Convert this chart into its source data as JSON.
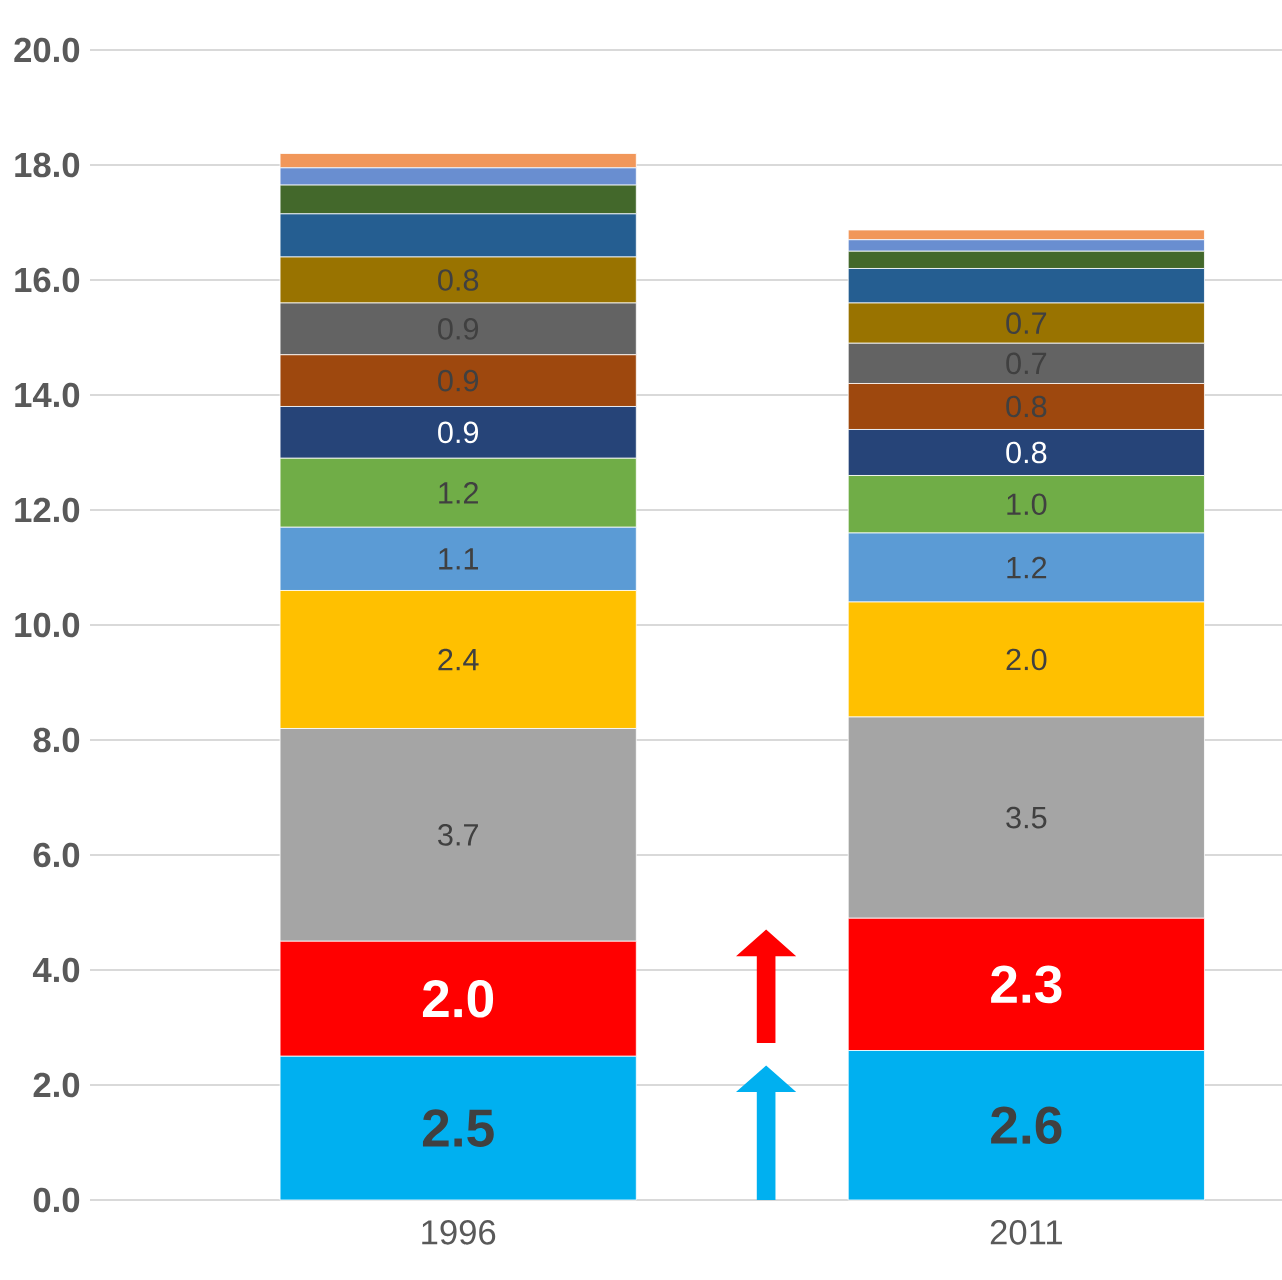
{
  "chart_data": {
    "type": "bar",
    "stacked": true,
    "categories": [
      "1996",
      "2011"
    ],
    "series": [
      {
        "color": "#00b0f0",
        "values": [
          2.5,
          2.6
        ],
        "value_labels": [
          "2.5",
          "2.6"
        ]
      },
      {
        "color": "#ff0000",
        "values": [
          2.0,
          2.3
        ],
        "value_labels": [
          "2.0",
          "2.3"
        ]
      },
      {
        "color": "#a5a5a5",
        "values": [
          3.7,
          3.5
        ],
        "value_labels": [
          "3.7",
          "3.5"
        ]
      },
      {
        "color": "#ffc000",
        "values": [
          2.4,
          2.0
        ],
        "value_labels": [
          "2.4",
          "2.0"
        ]
      },
      {
        "color": "#5b9bd5",
        "values": [
          1.1,
          1.2
        ],
        "value_labels": [
          "1.1",
          "1.2"
        ]
      },
      {
        "color": "#70ad47",
        "values": [
          1.2,
          1.0
        ],
        "value_labels": [
          "1.2",
          "1.0"
        ]
      },
      {
        "color": "#264478",
        "values": [
          0.9,
          0.8
        ],
        "value_labels": [
          "0.9",
          "0.8"
        ]
      },
      {
        "color": "#9e480e",
        "values": [
          0.9,
          0.8
        ],
        "value_labels": [
          "0.9",
          "0.8"
        ]
      },
      {
        "color": "#636363",
        "values": [
          0.9,
          0.7
        ],
        "value_labels": [
          "0.9",
          "0.7"
        ]
      },
      {
        "color": "#997300",
        "values": [
          0.8,
          0.7
        ],
        "value_labels": [
          "0.8",
          "0.7"
        ]
      },
      {
        "color": "#255e91",
        "values": [
          0.75,
          0.6
        ]
      },
      {
        "color": "#43682b",
        "values": [
          0.5,
          0.3
        ]
      },
      {
        "color": "#698ed0",
        "values": [
          0.3,
          0.2
        ]
      },
      {
        "color": "#f1975a",
        "values": [
          0.25,
          0.17
        ]
      }
    ],
    "ylim": [
      0,
      20
    ],
    "yticks": [
      {
        "value": 0,
        "label": "0.0"
      },
      {
        "value": 2,
        "label": "2.0"
      },
      {
        "value": 4,
        "label": "4.0"
      },
      {
        "value": 6,
        "label": "6.0"
      },
      {
        "value": 8,
        "label": "8.0"
      },
      {
        "value": 10,
        "label": "10.0"
      },
      {
        "value": 12,
        "label": "12.0"
      },
      {
        "value": 14,
        "label": "14.0"
      },
      {
        "value": 16,
        "label": "16.0"
      },
      {
        "value": 18,
        "label": "18.0"
      },
      {
        "value": 20,
        "label": "20.0"
      }
    ],
    "grid": "y"
  }
}
